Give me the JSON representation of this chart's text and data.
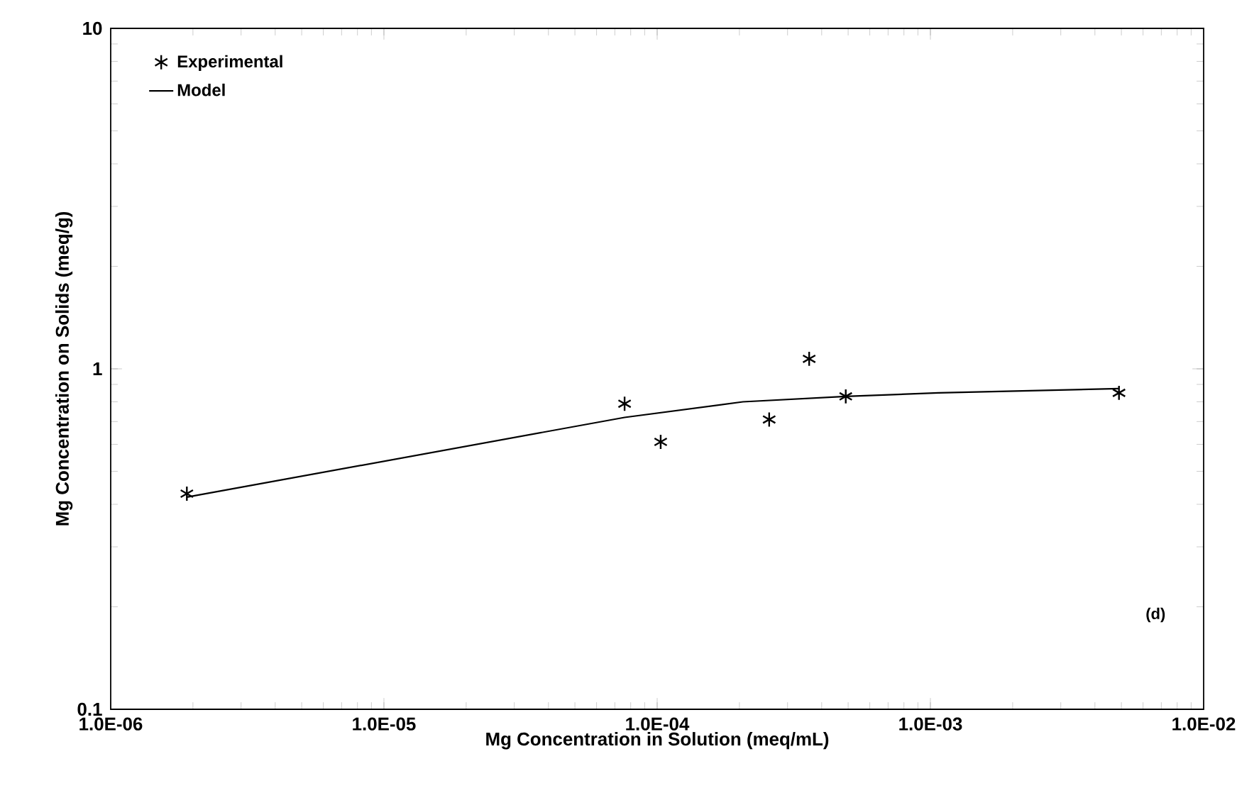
{
  "chart_data": {
    "type": "scatter",
    "xlabel": "Mg Concentration in Solution (meq/mL)",
    "ylabel": "Mg Concentration on Solids (meq/g)",
    "log": "xy",
    "xlim": [
      1e-06,
      0.01
    ],
    "ylim": [
      0.1,
      10
    ],
    "xticks": [
      {
        "value": 1e-06,
        "label": "1.0E-06"
      },
      {
        "value": 1e-05,
        "label": "1.0E-05"
      },
      {
        "value": 0.0001,
        "label": "1.0E-04"
      },
      {
        "value": 0.001,
        "label": "1.0E-03"
      },
      {
        "value": 0.01,
        "label": "1.0E-02"
      }
    ],
    "yticks": [
      0.1,
      1,
      10
    ],
    "grid": false,
    "legend": "top left",
    "annotations": [
      "(d)"
    ],
    "series": [
      {
        "name": "Experimental",
        "marker": "cross",
        "color": "#000000",
        "x": [
          1.9e-06,
          7.6e-05,
          0.000103,
          0.000257,
          0.00036,
          0.00049,
          0.0049
        ],
        "values": [
          0.43,
          0.79,
          0.61,
          0.71,
          1.07,
          0.83,
          0.85
        ]
      },
      {
        "name": "Model",
        "type": "line",
        "marker": "none",
        "line_style": "solid",
        "color": "#000000",
        "x": [
          1.9e-06,
          7.6e-05,
          0.000206,
          0.00049,
          0.00107,
          0.0049
        ],
        "values": [
          0.42,
          0.72,
          0.8,
          0.83,
          0.85,
          0.875
        ]
      }
    ]
  }
}
